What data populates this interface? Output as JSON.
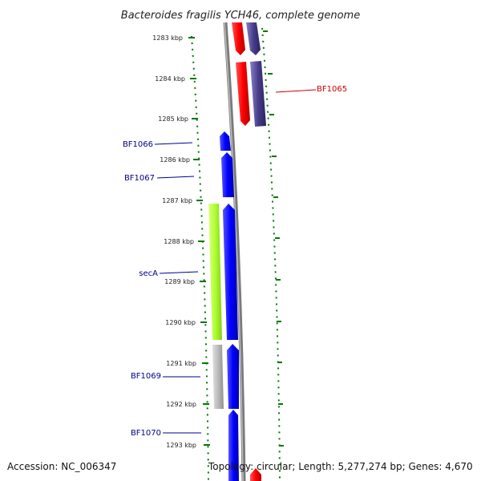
{
  "title": "Bacteroides fragilis YCH46, complete genome",
  "footer": {
    "accession": "Accession: NC_006347",
    "topology": "Topology: circular; Length: 5,277,274 bp; Genes: 4,670"
  },
  "ticks": [
    "1283 kbp",
    "1284 kbp",
    "1285 kbp",
    "1286 kbp",
    "1287 kbp",
    "1288 kbp",
    "1289 kbp",
    "1290 kbp",
    "1291 kbp",
    "1292 kbp",
    "1293 kbp"
  ],
  "gene_labels": [
    {
      "id": "bf1065",
      "text": "BF1065",
      "color": "#cc0000"
    },
    {
      "id": "bf1066",
      "text": "BF1066",
      "color": "#00008b"
    },
    {
      "id": "bf1067",
      "text": "BF1067",
      "color": "#00008b"
    },
    {
      "id": "seca",
      "text": "secA",
      "color": "#00008b"
    },
    {
      "id": "bf1069",
      "text": "BF1069",
      "color": "#00008b"
    },
    {
      "id": "bf1070",
      "text": "BF1070",
      "color": "#00008b"
    }
  ],
  "colors": {
    "red": "#ff0000",
    "purple": "#483d8b",
    "blue": "#0000ff",
    "green": "#adff2f",
    "gray": "#bbbbbb",
    "backbone": "#888888",
    "tick": "#007700"
  }
}
